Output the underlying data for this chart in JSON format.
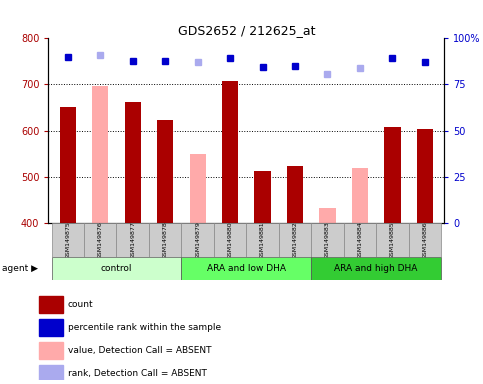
{
  "title": "GDS2652 / 212625_at",
  "samples": [
    "GSM149875",
    "GSM149876",
    "GSM149877",
    "GSM149878",
    "GSM149879",
    "GSM149880",
    "GSM149881",
    "GSM149882",
    "GSM149883",
    "GSM149884",
    "GSM149885",
    "GSM149886"
  ],
  "bar_values": [
    652,
    697,
    662,
    624,
    549,
    708,
    512,
    523,
    432,
    519,
    608,
    603
  ],
  "bar_absent": [
    false,
    true,
    false,
    false,
    true,
    false,
    false,
    false,
    true,
    true,
    false,
    false
  ],
  "percentile_values": [
    760,
    764,
    752,
    752,
    748,
    757,
    738,
    740,
    723,
    735,
    758,
    749
  ],
  "percentile_absent": [
    false,
    true,
    false,
    false,
    true,
    false,
    false,
    false,
    true,
    true,
    false,
    false
  ],
  "ylim_left": [
    400,
    800
  ],
  "ylim_right": [
    0,
    100
  ],
  "yticks_left": [
    400,
    500,
    600,
    700,
    800
  ],
  "yticks_right": [
    0,
    25,
    50,
    75,
    100
  ],
  "groups": [
    {
      "label": "control",
      "start": 0,
      "end": 3,
      "color": "#ccffcc"
    },
    {
      "label": "ARA and low DHA",
      "start": 4,
      "end": 7,
      "color": "#66ff66"
    },
    {
      "label": "ARA and high DHA",
      "start": 8,
      "end": 11,
      "color": "#33cc33"
    }
  ],
  "bar_color_present": "#aa0000",
  "bar_color_absent": "#ffaaaa",
  "dot_color_present": "#0000cc",
  "dot_color_absent": "#aaaaee",
  "bar_width": 0.5,
  "legend_items": [
    {
      "label": "count",
      "color": "#aa0000"
    },
    {
      "label": "percentile rank within the sample",
      "color": "#0000cc"
    },
    {
      "label": "value, Detection Call = ABSENT",
      "color": "#ffaaaa"
    },
    {
      "label": "rank, Detection Call = ABSENT",
      "color": "#aaaaee"
    }
  ],
  "right_axis_color": "#0000cc",
  "left_axis_color": "#aa0000",
  "sample_box_color": "#cccccc",
  "figure_bg": "#ffffff"
}
